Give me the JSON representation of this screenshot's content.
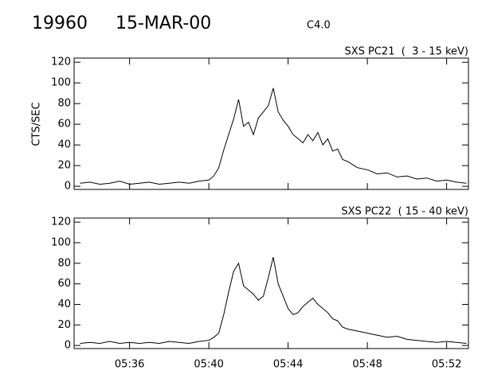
{
  "chart_data": [
    {
      "type": "line",
      "title": "19960",
      "subtitle": "15-MAR-00",
      "annotation": "C4.0",
      "series_label": "SXS PC21  (  3 - 15 keV)",
      "y_label": "CTS/SEC",
      "xlim": [
        333.2,
        353.1
      ],
      "xticks": [
        {
          "value": 336,
          "label": "05:36"
        },
        {
          "value": 340,
          "label": "05:40"
        },
        {
          "value": 344,
          "label": "05:44"
        },
        {
          "value": 348,
          "label": "05:48"
        },
        {
          "value": 352,
          "label": "05:52"
        }
      ],
      "ylim": [
        -3,
        124
      ],
      "yticks": [
        0,
        20,
        40,
        60,
        80,
        100,
        120
      ],
      "color": "#000000",
      "x": [
        333.5,
        334,
        334.5,
        335,
        335.5,
        336,
        336.5,
        337,
        337.5,
        338,
        338.5,
        339,
        339.5,
        340,
        340.25,
        340.5,
        340.75,
        341,
        341.25,
        341.5,
        341.75,
        342,
        342.25,
        342.5,
        342.75,
        343,
        343.25,
        343.5,
        343.75,
        344,
        344.25,
        344.5,
        344.75,
        345,
        345.25,
        345.5,
        345.75,
        346,
        346.25,
        346.5,
        346.75,
        347,
        347.5,
        348,
        348.5,
        349,
        349.5,
        350,
        350.5,
        351,
        351.5,
        352,
        352.5,
        353
      ],
      "values": [
        3,
        4,
        2,
        3,
        5,
        2,
        3,
        4,
        2,
        3,
        4,
        3,
        5,
        6,
        10,
        18,
        35,
        50,
        65,
        84,
        58,
        62,
        50,
        66,
        72,
        78,
        95,
        72,
        64,
        58,
        50,
        46,
        42,
        50,
        44,
        52,
        40,
        46,
        34,
        36,
        26,
        24,
        18,
        16,
        12,
        13,
        9,
        10,
        7,
        8,
        5,
        6,
        4,
        3
      ]
    },
    {
      "type": "line",
      "series_label": "SXS PC22  ( 15 - 40 keV)",
      "xlim": [
        333.2,
        353.1
      ],
      "xticks": [
        {
          "value": 336,
          "label": "05:36"
        },
        {
          "value": 340,
          "label": "05:40"
        },
        {
          "value": 344,
          "label": "05:44"
        },
        {
          "value": 348,
          "label": "05:48"
        },
        {
          "value": 352,
          "label": "05:52"
        }
      ],
      "ylim": [
        -3,
        124
      ],
      "yticks": [
        0,
        20,
        40,
        60,
        80,
        100,
        120
      ],
      "color": "#000000",
      "x": [
        333.5,
        334,
        334.5,
        335,
        335.5,
        336,
        336.5,
        337,
        337.5,
        338,
        338.5,
        339,
        339.5,
        340,
        340.25,
        340.5,
        340.75,
        341,
        341.25,
        341.5,
        341.75,
        342,
        342.25,
        342.5,
        342.75,
        343,
        343.25,
        343.5,
        343.75,
        344,
        344.25,
        344.5,
        344.75,
        345,
        345.25,
        345.5,
        345.75,
        346,
        346.25,
        346.5,
        346.75,
        347,
        347.5,
        348,
        348.5,
        349,
        349.5,
        350,
        350.5,
        351,
        351.5,
        352,
        352.5,
        353
      ],
      "values": [
        2,
        3,
        2,
        4,
        2,
        3,
        2,
        3,
        2,
        4,
        3,
        2,
        4,
        5,
        8,
        12,
        30,
        52,
        72,
        80,
        58,
        54,
        50,
        44,
        48,
        66,
        86,
        60,
        48,
        36,
        30,
        32,
        38,
        42,
        46,
        40,
        36,
        32,
        26,
        24,
        18,
        16,
        14,
        12,
        10,
        8,
        9,
        6,
        5,
        4,
        3,
        4,
        3,
        2
      ]
    }
  ]
}
